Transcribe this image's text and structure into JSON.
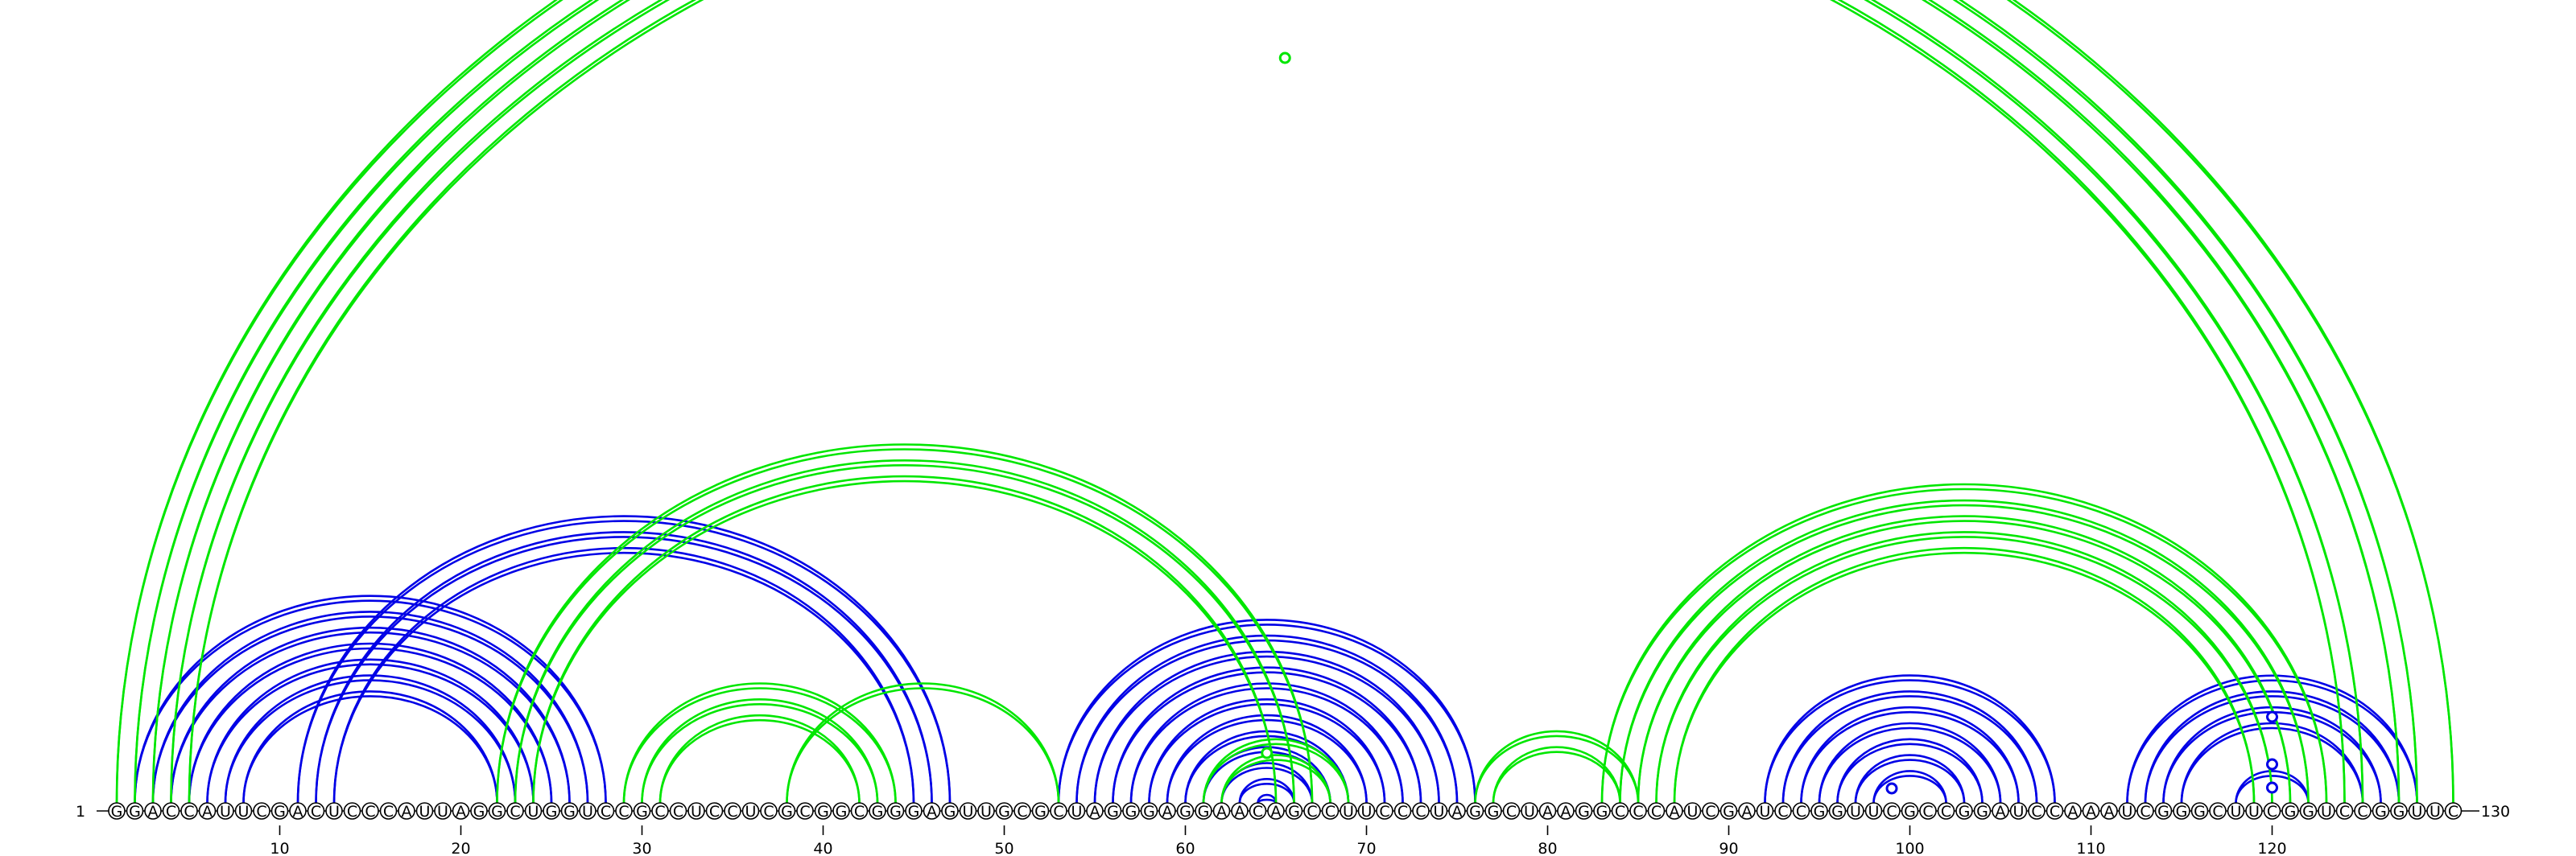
{
  "sequence": "GGACCAUUCGACUCCCAUUAGGCUGGUCCGCCUCCUCGCGGCGGGAGUUGCGCUAGGGAGGAACAGCCUUCCCUAGGCUAAGGCCCAUCGAUCCGGUUCGCCGGAUCCAAAUCGGGCUUCGGUCCGGUUC",
  "start_label": "1",
  "end_label": "130",
  "ticks": [
    10,
    20,
    30,
    40,
    50,
    60,
    70,
    80,
    90,
    100,
    110,
    120
  ],
  "colors": {
    "upper_pairs": "#0000e6",
    "lower_pairs": "#00e600"
  },
  "chart_data": {
    "type": "arc",
    "length": 130,
    "pair_sets": [
      {
        "color": "#0000e6",
        "helices": [
          {
            "i": 2,
            "j": 28,
            "len": 7
          },
          {
            "i": 11,
            "j": 47,
            "len": 3
          },
          {
            "i": 53,
            "j": 76,
            "len": 12
          },
          {
            "i": 92,
            "j": 108,
            "len": 7
          },
          {
            "i": 112,
            "j": 128,
            "len": 4
          },
          {
            "i": 118,
            "j": 122,
            "len": 1
          }
        ]
      },
      {
        "color": "#00e600",
        "helices": [
          {
            "i": 1,
            "j": 130,
            "len": 1
          },
          {
            "i": 2,
            "j": 128,
            "len": 1
          },
          {
            "i": 3,
            "j": 127,
            "len": 1
          },
          {
            "i": 4,
            "j": 125,
            "len": 1
          },
          {
            "i": 5,
            "j": 124,
            "len": 1
          },
          {
            "i": 22,
            "j": 67,
            "len": 3
          },
          {
            "i": 29,
            "j": 44,
            "len": 3
          },
          {
            "i": 38,
            "j": 53,
            "len": 1
          },
          {
            "i": 61,
            "j": 69,
            "len": 2
          },
          {
            "i": 76,
            "j": 85,
            "len": 2
          },
          {
            "i": 83,
            "j": 123,
            "len": 5
          }
        ]
      }
    ],
    "loop_markers": [
      {
        "pos": 65.5,
        "color": "#00e600",
        "level": "outer"
      },
      {
        "pos": 64.5,
        "color": "#00e600",
        "level": "inner"
      },
      {
        "pos": 99,
        "color": "#0000e6",
        "level": "inner"
      },
      {
        "pos": 120,
        "color": "#0000e6",
        "level": "inner"
      }
    ]
  }
}
